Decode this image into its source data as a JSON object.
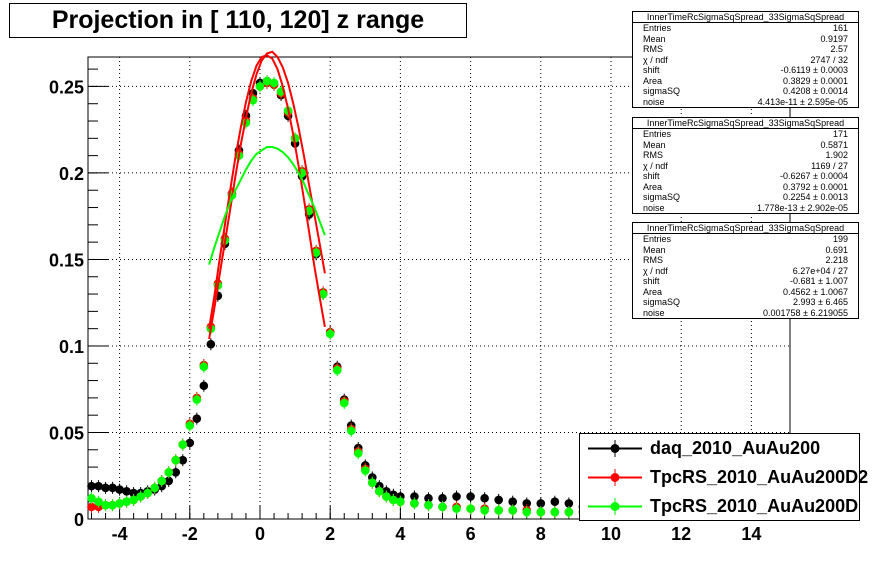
{
  "title": "Projection in [ 110, 120] z range",
  "stats_boxes": [
    {
      "name": "InnerTimeRcSigmaSqSpread_33SigmaSqSpread",
      "rows": [
        {
          "label": "Entries",
          "value": "161"
        },
        {
          "label": "Mean",
          "value": "0.9197"
        },
        {
          "label": "RMS",
          "value": "2.57"
        },
        {
          "label": "χ  / ndf",
          "value": "2747 / 32"
        },
        {
          "label": "shift",
          "value": "-0.6119 ± 0.0003"
        },
        {
          "label": "Area",
          "value": "0.3829 ± 0.0001"
        },
        {
          "label": "sigmaSQ",
          "value": "0.4208 ± 0.0014"
        },
        {
          "label": "noise",
          "value": "4.413e-11 ± 2.595e-05"
        }
      ]
    },
    {
      "name": "InnerTimeRcSigmaSqSpread_33SigmaSqSpread",
      "rows": [
        {
          "label": "Entries",
          "value": "171"
        },
        {
          "label": "Mean",
          "value": "0.5871"
        },
        {
          "label": "RMS",
          "value": "1.902"
        },
        {
          "label": "χ  / ndf",
          "value": "1169 / 27"
        },
        {
          "label": "shift",
          "value": "-0.6267 ± 0.0004"
        },
        {
          "label": "Area",
          "value": "0.3792 ± 0.0001"
        },
        {
          "label": "sigmaSQ",
          "value": "0.2254 ± 0.0013"
        },
        {
          "label": "noise",
          "value": "1.778e-13 ± 2.902e-05"
        }
      ]
    },
    {
      "name": "InnerTimeRcSigmaSqSpread_33SigmaSqSpread",
      "rows": [
        {
          "label": "Entries",
          "value": "199"
        },
        {
          "label": "Mean",
          "value": "0.691"
        },
        {
          "label": "RMS",
          "value": "2.218"
        },
        {
          "label": "χ  / ndf",
          "value": "6.27e+04 / 27"
        },
        {
          "label": "shift",
          "value": "-0.681 ± 1.007"
        },
        {
          "label": "Area",
          "value": "0.4562 ± 1.0067"
        },
        {
          "label": "sigmaSQ",
          "value": "2.993 ± 6.465"
        },
        {
          "label": "noise",
          "value": "0.001758 ± 6.219055"
        }
      ]
    }
  ],
  "legend": [
    {
      "label": "daq_2010_AuAu200",
      "color": "#000000"
    },
    {
      "label": "TpcRS_2010_AuAu200D2",
      "color": "#ff0000"
    },
    {
      "label": "TpcRS_2010_AuAu200D",
      "color": "#00ff00"
    }
  ],
  "chart_data": {
    "type": "scatter",
    "title": "Projection in [ 110, 120] z range",
    "xlim": [
      -4.9,
      15.1
    ],
    "ylim": [
      0,
      0.267
    ],
    "xticks": [
      -4,
      -2,
      0,
      2,
      4,
      6,
      8,
      10,
      12,
      14
    ],
    "yticks": [
      0,
      0.05,
      0.1,
      0.15,
      0.2,
      0.25
    ],
    "ytick_labels": [
      "0",
      "0.05",
      "0.1",
      "0.15",
      "0.2",
      "0.25"
    ],
    "grid": true,
    "legend_position": "bottom-right",
    "series": [
      {
        "name": "daq_2010_AuAu200",
        "color": "#000000",
        "x": [
          -4.8,
          -4.6,
          -4.4,
          -4.2,
          -4.0,
          -3.8,
          -3.6,
          -3.4,
          -3.2,
          -3.0,
          -2.8,
          -2.6,
          -2.4,
          -2.2,
          -2.0,
          -1.8,
          -1.6,
          -1.4,
          -1.2,
          -1.0,
          -0.8,
          -0.6,
          -0.4,
          -0.2,
          0.0,
          0.2,
          0.4,
          0.6,
          0.8,
          1.0,
          1.2,
          1.4,
          1.6,
          1.8,
          2.0,
          2.2,
          2.4,
          2.6,
          2.8,
          3.0,
          3.2,
          3.4,
          3.6,
          3.8,
          4.0,
          4.4,
          4.8,
          5.2,
          5.6,
          6.0,
          6.4,
          6.8,
          7.2,
          7.6,
          8.0,
          8.4,
          8.8,
          9.2
        ],
        "y": [
          0.019,
          0.019,
          0.018,
          0.018,
          0.017,
          0.016,
          0.015,
          0.015,
          0.016,
          0.017,
          0.019,
          0.022,
          0.027,
          0.034,
          0.044,
          0.058,
          0.077,
          0.101,
          0.129,
          0.159,
          0.188,
          0.213,
          0.233,
          0.246,
          0.252,
          0.253,
          0.251,
          0.245,
          0.233,
          0.217,
          0.198,
          0.176,
          0.153,
          0.13,
          0.108,
          0.088,
          0.069,
          0.054,
          0.041,
          0.031,
          0.024,
          0.019,
          0.016,
          0.014,
          0.013,
          0.013,
          0.012,
          0.012,
          0.013,
          0.013,
          0.012,
          0.011,
          0.01,
          0.009,
          0.009,
          0.01,
          0.009,
          0.007
        ]
      },
      {
        "name": "TpcRS_2010_AuAu200D2",
        "color": "#ff0000",
        "x": [
          -4.8,
          -4.6,
          -4.4,
          -4.2,
          -4.0,
          -3.8,
          -3.6,
          -3.4,
          -3.2,
          -3.0,
          -2.8,
          -2.6,
          -2.4,
          -2.2,
          -2.0,
          -1.8,
          -1.6,
          -1.4,
          -1.2,
          -1.0,
          -0.8,
          -0.6,
          -0.4,
          -0.2,
          0.0,
          0.2,
          0.4,
          0.6,
          0.8,
          1.0,
          1.2,
          1.4,
          1.6,
          1.8,
          2.0,
          2.2,
          2.4,
          2.6,
          2.8,
          3.0,
          3.2,
          3.4,
          3.6,
          3.8,
          4.0,
          4.4,
          4.8,
          5.2,
          5.6,
          6.0,
          6.4,
          6.8,
          7.2,
          7.6,
          8.0,
          8.4,
          8.8,
          9.2
        ],
        "y": [
          0.007,
          0.007,
          0.008,
          0.008,
          0.009,
          0.01,
          0.011,
          0.013,
          0.015,
          0.018,
          0.022,
          0.027,
          0.034,
          0.043,
          0.055,
          0.07,
          0.089,
          0.111,
          0.136,
          0.162,
          0.188,
          0.211,
          0.23,
          0.243,
          0.25,
          0.252,
          0.251,
          0.246,
          0.235,
          0.22,
          0.201,
          0.179,
          0.155,
          0.131,
          0.108,
          0.087,
          0.068,
          0.052,
          0.039,
          0.029,
          0.021,
          0.016,
          0.013,
          0.011,
          0.01,
          0.009,
          0.008,
          0.007,
          0.007,
          0.006,
          0.006,
          0.005,
          0.005,
          0.005,
          0.004,
          0.004,
          0.004,
          0.004
        ]
      },
      {
        "name": "TpcRS_2010_AuAu200D",
        "color": "#00ff00",
        "x": [
          -4.8,
          -4.6,
          -4.4,
          -4.2,
          -4.0,
          -3.8,
          -3.6,
          -3.4,
          -3.2,
          -3.0,
          -2.8,
          -2.6,
          -2.4,
          -2.2,
          -2.0,
          -1.8,
          -1.6,
          -1.4,
          -1.2,
          -1.0,
          -0.8,
          -0.6,
          -0.4,
          -0.2,
          0.0,
          0.2,
          0.4,
          0.6,
          0.8,
          1.0,
          1.2,
          1.4,
          1.6,
          1.8,
          2.0,
          2.2,
          2.4,
          2.6,
          2.8,
          3.0,
          3.2,
          3.4,
          3.6,
          3.8,
          4.0,
          4.4,
          4.8,
          5.2,
          5.6,
          6.0,
          6.4,
          6.8,
          7.2,
          7.6,
          8.0,
          8.4,
          8.8,
          9.2
        ],
        "y": [
          0.012,
          0.01,
          0.008,
          0.008,
          0.009,
          0.01,
          0.011,
          0.013,
          0.015,
          0.018,
          0.022,
          0.027,
          0.034,
          0.043,
          0.054,
          0.069,
          0.088,
          0.11,
          0.135,
          0.161,
          0.187,
          0.21,
          0.229,
          0.242,
          0.25,
          0.253,
          0.252,
          0.247,
          0.236,
          0.22,
          0.2,
          0.178,
          0.154,
          0.13,
          0.107,
          0.086,
          0.067,
          0.051,
          0.038,
          0.028,
          0.021,
          0.016,
          0.013,
          0.011,
          0.01,
          0.009,
          0.008,
          0.007,
          0.006,
          0.006,
          0.005,
          0.005,
          0.005,
          0.004,
          0.004,
          0.004,
          0.004,
          0.004
        ]
      }
    ],
    "fit_curves": [
      {
        "color": "#ff0000",
        "x": [
          -1.45,
          -1.3,
          -1.15,
          -1.0,
          -0.85,
          -0.7,
          -0.55,
          -0.4,
          -0.25,
          -0.1,
          0.05,
          0.2,
          0.35,
          0.5,
          0.65,
          0.8,
          0.95,
          1.1,
          1.25,
          1.4,
          1.55,
          1.7,
          1.85
        ],
        "y": [
          0.104,
          0.122,
          0.141,
          0.16,
          0.179,
          0.198,
          0.216,
          0.232,
          0.246,
          0.257,
          0.265,
          0.269,
          0.27,
          0.267,
          0.261,
          0.252,
          0.24,
          0.226,
          0.21,
          0.193,
          0.176,
          0.159,
          0.142
        ]
      },
      {
        "color": "#ff0000",
        "x": [
          -1.45,
          -1.3,
          -1.15,
          -1.0,
          -0.85,
          -0.7,
          -0.55,
          -0.4,
          -0.25,
          -0.1,
          0.05,
          0.2,
          0.35,
          0.5,
          0.65,
          0.8,
          0.95,
          1.1,
          1.25,
          1.4,
          1.55,
          1.7,
          1.85
        ],
        "y": [
          0.11,
          0.129,
          0.15,
          0.17,
          0.19,
          0.209,
          0.226,
          0.241,
          0.253,
          0.262,
          0.267,
          0.268,
          0.266,
          0.26,
          0.25,
          0.237,
          0.222,
          0.204,
          0.185,
          0.166,
          0.146,
          0.128,
          0.111
        ]
      },
      {
        "color": "#00ff00",
        "x": [
          -1.45,
          -1.3,
          -1.15,
          -1.0,
          -0.85,
          -0.7,
          -0.55,
          -0.4,
          -0.25,
          -0.1,
          0.05,
          0.2,
          0.35,
          0.5,
          0.65,
          0.8,
          0.95,
          1.1,
          1.25,
          1.4,
          1.55,
          1.7,
          1.85
        ],
        "y": [
          0.147,
          0.157,
          0.166,
          0.175,
          0.183,
          0.19,
          0.196,
          0.202,
          0.207,
          0.211,
          0.213,
          0.215,
          0.215,
          0.214,
          0.212,
          0.209,
          0.205,
          0.2,
          0.194,
          0.187,
          0.18,
          0.172,
          0.164
        ]
      }
    ]
  }
}
